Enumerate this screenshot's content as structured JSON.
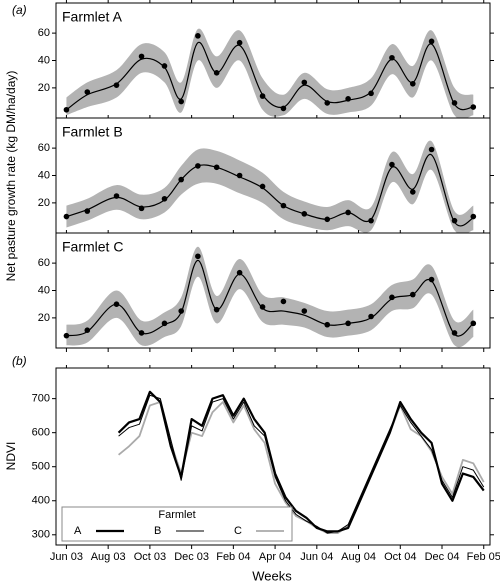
{
  "chart_data": [
    {
      "type": "band-line",
      "label": "(a)",
      "ylabel": "Net pasture growth rate (kg DM/ha/day)",
      "xlim": [
        -0.5,
        20.3
      ],
      "xticks": [
        0,
        2,
        4,
        6,
        8,
        10,
        12,
        14,
        16,
        18,
        20
      ],
      "ylim": [
        -2,
        82
      ],
      "yticks": [
        20,
        40,
        60
      ],
      "band_color": "#b3b3b3",
      "line_color": "#000000",
      "x": [
        0,
        1,
        2.4,
        3.6,
        4.7,
        5.5,
        6.3,
        7.2,
        8.3,
        9.4,
        10.4,
        11.4,
        12.5,
        13.5,
        14.6,
        15.6,
        16.6,
        17.5,
        18.6,
        19.5
      ],
      "panels": [
        {
          "title": "Farmlet A",
          "points": [
            4,
            17,
            22,
            43,
            36,
            10,
            58,
            31,
            53,
            14,
            5,
            24,
            9,
            12,
            16,
            42,
            23,
            54,
            9,
            6
          ],
          "fit": [
            4,
            15,
            23,
            41,
            35,
            12,
            53,
            31,
            51,
            15,
            6,
            22,
            10,
            11,
            17,
            41,
            24,
            52,
            8,
            6
          ],
          "lower": [
            0,
            6,
            13,
            31,
            24,
            2,
            40,
            20,
            40,
            4,
            0,
            12,
            1,
            2,
            7,
            30,
            13,
            40,
            0,
            0
          ],
          "upper": [
            13,
            24,
            33,
            52,
            46,
            24,
            63,
            43,
            62,
            27,
            15,
            31,
            19,
            20,
            27,
            52,
            36,
            62,
            20,
            15
          ]
        },
        {
          "title": "Farmlet B",
          "points": [
            10,
            14,
            25,
            16,
            23,
            37,
            47,
            46,
            40,
            32,
            18,
            12,
            8,
            13,
            7,
            48,
            28,
            59,
            7,
            10
          ],
          "fit": [
            10,
            15,
            24,
            17,
            22,
            37,
            47,
            46,
            39,
            31,
            18,
            12,
            8,
            13,
            8,
            46,
            30,
            55,
            6,
            9
          ],
          "lower": [
            2,
            7,
            15,
            8,
            13,
            26,
            34,
            34,
            27,
            20,
            8,
            3,
            0,
            3,
            0,
            35,
            19,
            44,
            0,
            0
          ],
          "upper": [
            18,
            23,
            33,
            26,
            31,
            47,
            59,
            58,
            51,
            42,
            28,
            21,
            17,
            22,
            17,
            57,
            41,
            65,
            14,
            18
          ]
        },
        {
          "title": "Farmlet C",
          "points": [
            7,
            11,
            30,
            9,
            16,
            25,
            65,
            26,
            53,
            28,
            32,
            25,
            15,
            16,
            21,
            35,
            37,
            48,
            9,
            16
          ],
          "fit": [
            7,
            10,
            30,
            9,
            15,
            24,
            62,
            26,
            52,
            27,
            25,
            22,
            15,
            16,
            20,
            34,
            37,
            47,
            8,
            16
          ],
          "lower": [
            0,
            2,
            20,
            0,
            6,
            14,
            50,
            16,
            41,
            17,
            15,
            13,
            6,
            7,
            11,
            25,
            27,
            37,
            0,
            6
          ],
          "upper": [
            15,
            18,
            40,
            18,
            24,
            35,
            72,
            36,
            63,
            37,
            35,
            31,
            25,
            26,
            30,
            44,
            48,
            58,
            18,
            26
          ]
        }
      ]
    },
    {
      "type": "line",
      "label": "(b)",
      "ylabel": "NDVI",
      "xlabel": "Weeks",
      "xlim": [
        -0.5,
        20.3
      ],
      "xticks": [
        {
          "value": 0,
          "label": "Jun 03"
        },
        {
          "value": 2,
          "label": "Aug 03"
        },
        {
          "value": 4,
          "label": "Oct 03"
        },
        {
          "value": 6,
          "label": "Dec 03"
        },
        {
          "value": 8,
          "label": "Feb 04"
        },
        {
          "value": 10,
          "label": "Apr 04"
        },
        {
          "value": 12,
          "label": "Jun 04"
        },
        {
          "value": 14,
          "label": "Aug 04"
        },
        {
          "value": 16,
          "label": "Oct 04"
        },
        {
          "value": 18,
          "label": "Dec 04"
        },
        {
          "value": 20,
          "label": "Feb 05"
        }
      ],
      "ylim": [
        270,
        790
      ],
      "yticks": [
        300,
        400,
        500,
        600,
        700
      ],
      "legend_title": "Farmlet",
      "legend": "lower left",
      "x": [
        2.5,
        3,
        3.5,
        4,
        4.5,
        5,
        5.5,
        6,
        6.5,
        7,
        7.5,
        8,
        8.5,
        9,
        9.5,
        10,
        10.5,
        11,
        11.5,
        12,
        12.5,
        13,
        13.5,
        14,
        14.5,
        15,
        15.5,
        16,
        16.5,
        17,
        17.5,
        18,
        18.5,
        19,
        19.5,
        20
      ],
      "series": [
        {
          "name": "A",
          "color": "#000000",
          "line_width": 2.2,
          "values": [
            600,
            630,
            640,
            720,
            690,
            560,
            470,
            640,
            620,
            700,
            710,
            650,
            700,
            640,
            600,
            480,
            410,
            370,
            350,
            320,
            310,
            310,
            320,
            390,
            460,
            530,
            600,
            690,
            640,
            600,
            570,
            450,
            400,
            480,
            470,
            430
          ]
        },
        {
          "name": "B",
          "color": "#000000",
          "line_width": 1,
          "values": [
            590,
            615,
            625,
            710,
            700,
            580,
            460,
            620,
            605,
            690,
            700,
            640,
            690,
            620,
            590,
            470,
            400,
            360,
            340,
            325,
            305,
            310,
            330,
            400,
            470,
            540,
            610,
            680,
            630,
            590,
            550,
            460,
            410,
            500,
            490,
            440
          ]
        },
        {
          "name": "C",
          "color": "#aaaaaa",
          "line_width": 1.8,
          "values": [
            535,
            560,
            590,
            680,
            690,
            570,
            480,
            600,
            590,
            660,
            690,
            630,
            680,
            610,
            570,
            450,
            395,
            355,
            340,
            320,
            305,
            305,
            325,
            395,
            465,
            535,
            600,
            680,
            610,
            590,
            545,
            470,
            420,
            520,
            510,
            455
          ]
        }
      ]
    }
  ]
}
